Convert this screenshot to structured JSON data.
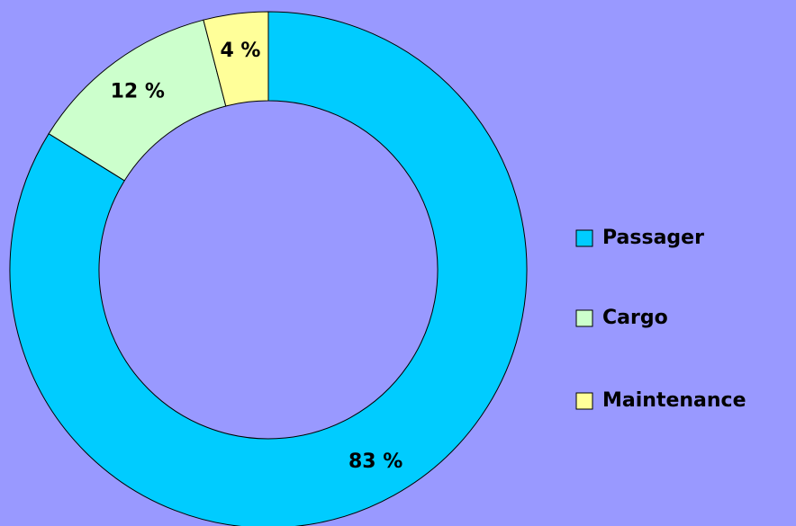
{
  "chart_data": {
    "type": "donut",
    "categories": [
      "Passager",
      "Cargo",
      "Maintenance"
    ],
    "values": [
      83,
      12,
      4
    ],
    "value_labels": [
      "83 %",
      "12 %",
      "4 %"
    ],
    "colors": [
      "#00ccff",
      "#ccffcc",
      "#ffff99"
    ],
    "legend": "right"
  }
}
